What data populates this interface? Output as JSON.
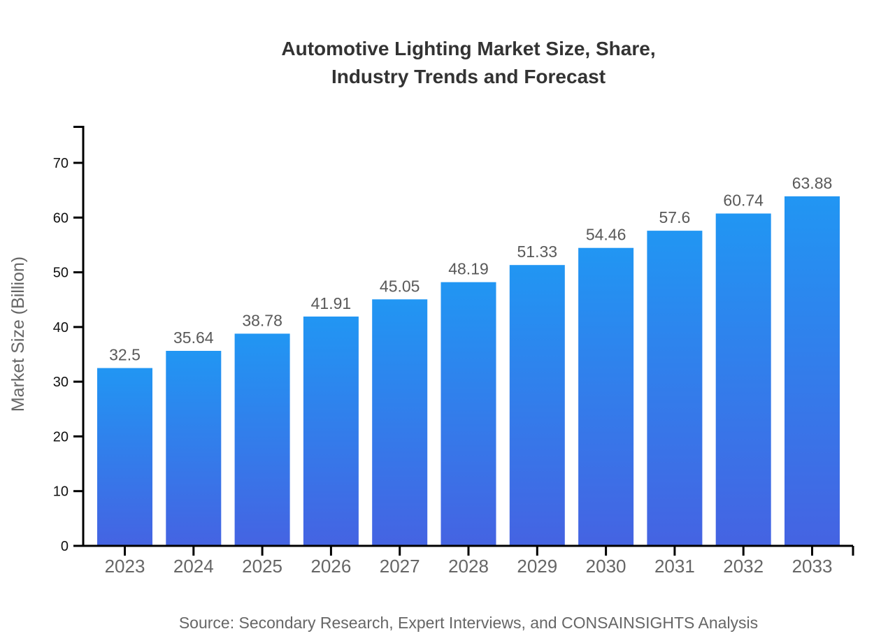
{
  "figure": {
    "title_line1": "Automotive Lighting Market Size, Share,",
    "title_line2": "Industry Trends and Forecast",
    "source": "Source: Secondary Research, Expert Interviews, and CONSAINSIGHTS Analysis"
  },
  "chart_data": {
    "type": "bar",
    "title": "Automotive Lighting Market Size, Share, Industry Trends and Forecast",
    "categories": [
      "2023",
      "2024",
      "2025",
      "2026",
      "2027",
      "2028",
      "2029",
      "2030",
      "2031",
      "2032",
      "2033"
    ],
    "values": [
      32.5,
      35.64,
      38.78,
      41.91,
      45.05,
      48.19,
      51.33,
      54.46,
      57.6,
      60.74,
      63.88
    ],
    "value_labels": [
      "32.5",
      "35.64",
      "38.78",
      "41.91",
      "45.05",
      "48.19",
      "51.33",
      "54.46",
      "57.6",
      "60.74",
      "63.88"
    ],
    "xlabel": "",
    "ylabel": "Market Size (Billion)",
    "ylim": [
      0,
      77
    ],
    "yticks": [
      0,
      10,
      20,
      30,
      40,
      50,
      60,
      70
    ],
    "grid": false,
    "legend": "none",
    "colors": {
      "bar_gradient_top": "#2196F3",
      "bar_gradient_bottom": "#4563E2",
      "axis": "#000000",
      "y_tick_label": "#111111",
      "x_tick_label": "#666666",
      "value_label": "#595959",
      "title": "#333333",
      "ylabel": "#666666",
      "source": "#666666"
    }
  }
}
